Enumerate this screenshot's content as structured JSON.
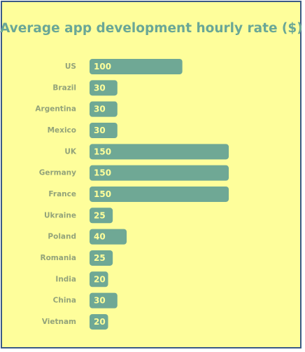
{
  "chart_data": {
    "type": "bar",
    "orientation": "horizontal",
    "title": "Average app development hourly rate ($)",
    "categories": [
      "US",
      "Brazil",
      "Argentina",
      "Mexico",
      "UK",
      "Germany",
      "France",
      "Ukraine",
      "Poland",
      "Romania",
      "India",
      "China",
      "Vietnam"
    ],
    "values": [
      100,
      30,
      30,
      30,
      150,
      150,
      150,
      25,
      40,
      25,
      20,
      30,
      20
    ],
    "xlim": [
      0,
      150
    ],
    "grid": false,
    "legend": "none",
    "colors": {
      "bar": "#6fa895",
      "background": "#fefe9b",
      "title": "#6aa796",
      "category_label": "#93a37a",
      "value_label": "#fefe9b",
      "border": "#3b5a86"
    }
  }
}
